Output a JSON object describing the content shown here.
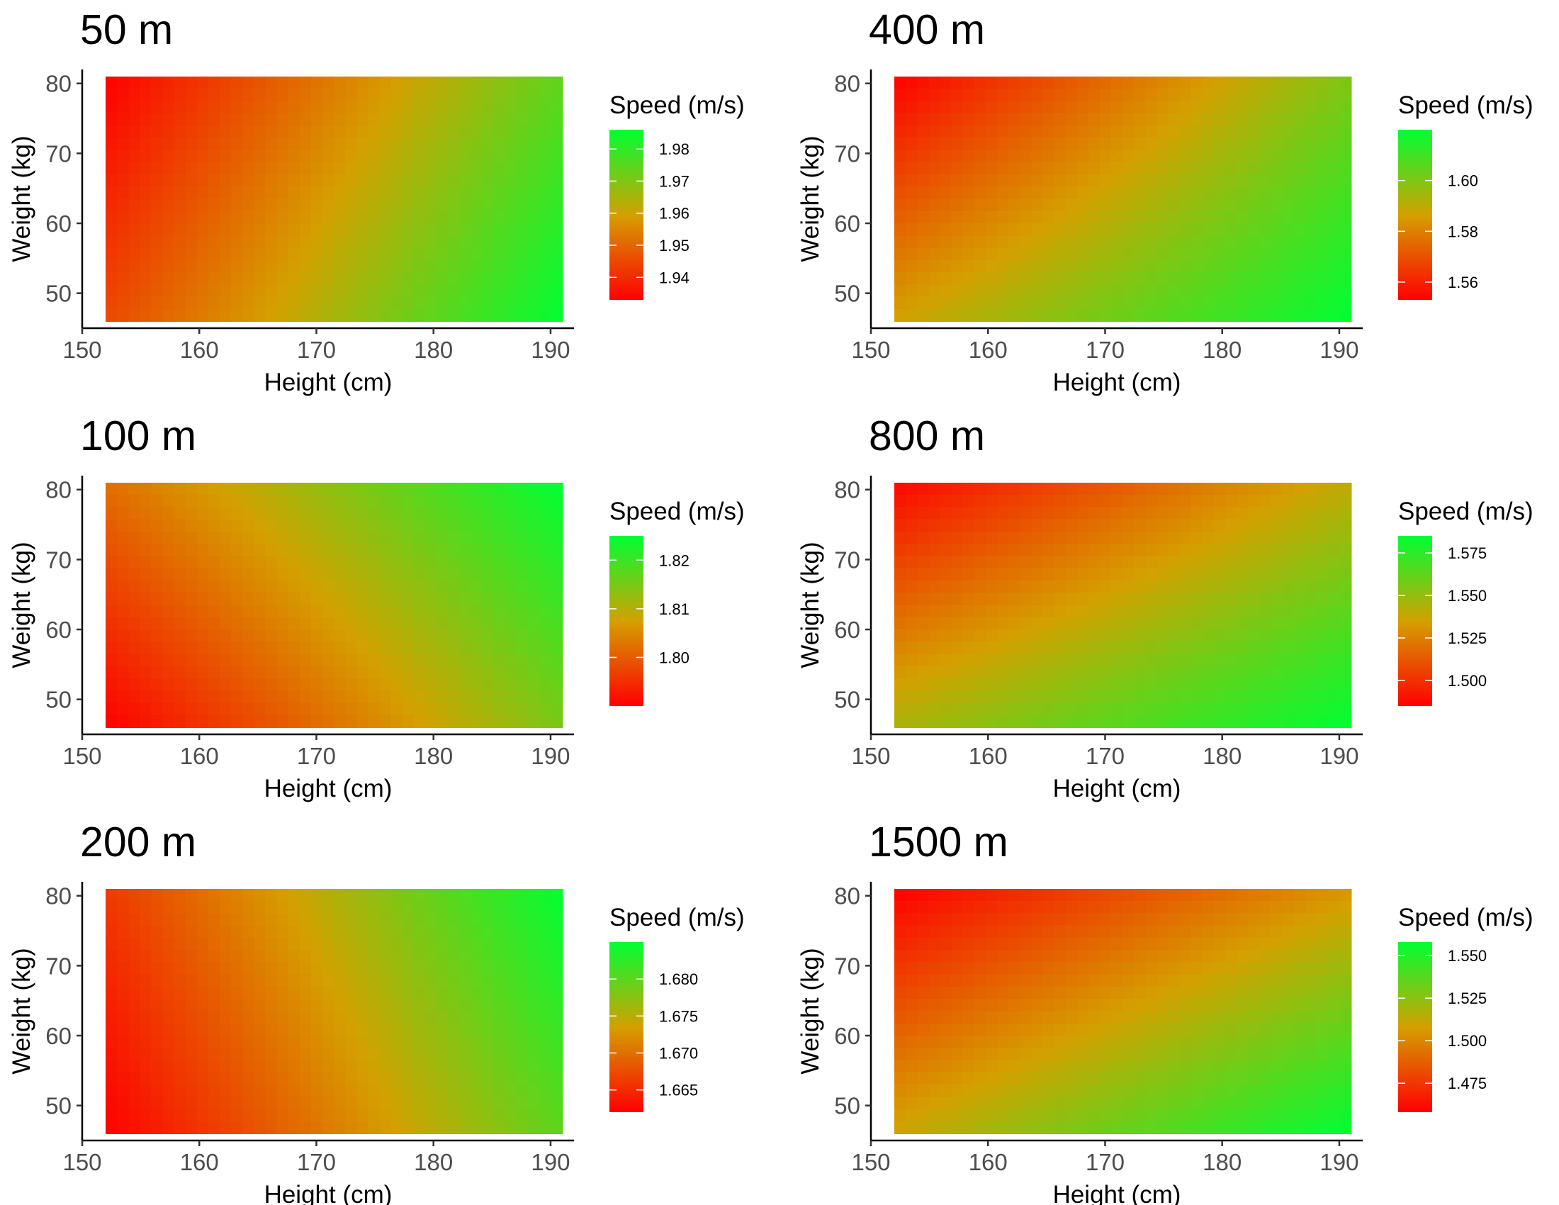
{
  "chart_data": [
    {
      "type": "heatmap",
      "title": "50 m",
      "xlabel": "Height (cm)",
      "ylabel": "Weight (kg)",
      "xlim": [
        150,
        192
      ],
      "ylim": [
        45,
        82
      ],
      "xticks": [
        "150",
        "160",
        "170",
        "180",
        "190"
      ],
      "yticks": [
        "50",
        "60",
        "70",
        "80"
      ],
      "x_range": [
        152,
        191
      ],
      "y_range": [
        46,
        81
      ],
      "corner_values": {
        "x152_y46": 1.945,
        "x191_y46": 1.986,
        "x152_y81": 1.933,
        "x191_y81": 1.974
      },
      "legend": {
        "title": "Speed (m/s)",
        "placement": "right",
        "colors": [
          "#ff0000",
          "#d4a000",
          "#00ff33"
        ],
        "range": [
          1.933,
          1.986
        ],
        "tick_values": [
          1.94,
          1.95,
          1.96,
          1.97,
          1.98
        ],
        "tick_labels": [
          "1.94",
          "1.95",
          "1.96",
          "1.97",
          "1.98"
        ]
      },
      "grid": false
    },
    {
      "type": "heatmap",
      "title": "400 m",
      "xlabel": "Height (cm)",
      "ylabel": "Weight (kg)",
      "xlim": [
        150,
        192
      ],
      "ylim": [
        45,
        82
      ],
      "xticks": [
        "150",
        "160",
        "170",
        "180",
        "190"
      ],
      "yticks": [
        "50",
        "60",
        "70",
        "80"
      ],
      "x_range": [
        152,
        191
      ],
      "y_range": [
        46,
        81
      ],
      "corner_values": {
        "x152_y46": 1.587,
        "x191_y46": 1.62,
        "x152_y81": 1.553,
        "x191_y81": 1.6
      },
      "legend": {
        "title": "Speed (m/s)",
        "placement": "right",
        "colors": [
          "#ff0000",
          "#d4a000",
          "#00ff33"
        ],
        "range": [
          1.553,
          1.62
        ],
        "tick_values": [
          1.56,
          1.58,
          1.6
        ],
        "tick_labels": [
          "1.56",
          "1.58",
          "1.60"
        ]
      },
      "grid": false
    },
    {
      "type": "heatmap",
      "title": "100 m",
      "xlabel": "Height (cm)",
      "ylabel": "Weight (kg)",
      "xlim": [
        150,
        192
      ],
      "ylim": [
        45,
        82
      ],
      "xticks": [
        "150",
        "160",
        "170",
        "180",
        "190"
      ],
      "yticks": [
        "50",
        "60",
        "70",
        "80"
      ],
      "x_range": [
        152,
        191
      ],
      "y_range": [
        46,
        81
      ],
      "corner_values": {
        "x152_y46": 1.79,
        "x191_y46": 1.815,
        "x152_y81": 1.802,
        "x191_y81": 1.825
      },
      "legend": {
        "title": "Speed (m/s)",
        "placement": "right",
        "colors": [
          "#ff0000",
          "#d4a000",
          "#00ff33"
        ],
        "range": [
          1.79,
          1.825
        ],
        "tick_values": [
          1.8,
          1.81,
          1.82
        ],
        "tick_labels": [
          "1.80",
          "1.81",
          "1.82"
        ]
      },
      "grid": false
    },
    {
      "type": "heatmap",
      "title": "800 m",
      "xlabel": "Height (cm)",
      "ylabel": "Weight (kg)",
      "xlim": [
        150,
        192
      ],
      "ylim": [
        45,
        82
      ],
      "xticks": [
        "150",
        "160",
        "170",
        "180",
        "190"
      ],
      "yticks": [
        "50",
        "60",
        "70",
        "80"
      ],
      "x_range": [
        152,
        191
      ],
      "y_range": [
        46,
        81
      ],
      "corner_values": {
        "x152_y46": 1.545,
        "x191_y46": 1.585,
        "x152_y81": 1.487,
        "x191_y81": 1.54
      },
      "legend": {
        "title": "Speed (m/s)",
        "placement": "right",
        "colors": [
          "#ff0000",
          "#d4a000",
          "#00ff33"
        ],
        "range": [
          1.485,
          1.585
        ],
        "tick_values": [
          1.5,
          1.525,
          1.55,
          1.575
        ],
        "tick_labels": [
          "1.500",
          "1.525",
          "1.550",
          "1.575"
        ]
      },
      "grid": false
    },
    {
      "type": "heatmap",
      "title": "200 m",
      "xlabel": "Height (cm)",
      "ylabel": "Weight (kg)",
      "xlim": [
        150,
        192
      ],
      "ylim": [
        45,
        82
      ],
      "xticks": [
        "150",
        "160",
        "170",
        "180",
        "190"
      ],
      "yticks": [
        "50",
        "60",
        "70",
        "80"
      ],
      "x_range": [
        152,
        191
      ],
      "y_range": [
        46,
        81
      ],
      "corner_values": {
        "x152_y46": 1.662,
        "x191_y46": 1.68,
        "x152_y81": 1.666,
        "x191_y81": 1.685
      },
      "legend": {
        "title": "Speed (m/s)",
        "placement": "right",
        "colors": [
          "#ff0000",
          "#d4a000",
          "#00ff33"
        ],
        "range": [
          1.662,
          1.685
        ],
        "tick_values": [
          1.665,
          1.67,
          1.675,
          1.68
        ],
        "tick_labels": [
          "1.665",
          "1.670",
          "1.675",
          "1.680"
        ]
      },
      "grid": false
    },
    {
      "type": "heatmap",
      "title": "1500 m",
      "xlabel": "Height (cm)",
      "ylabel": "Weight (kg)",
      "xlim": [
        150,
        192
      ],
      "ylim": [
        45,
        82
      ],
      "xticks": [
        "150",
        "160",
        "170",
        "180",
        "190"
      ],
      "yticks": [
        "50",
        "60",
        "70",
        "80"
      ],
      "x_range": [
        152,
        191
      ],
      "y_range": [
        46,
        81
      ],
      "corner_values": {
        "x152_y46": 1.51,
        "x191_y46": 1.558,
        "x152_y81": 1.458,
        "x191_y81": 1.505
      },
      "legend": {
        "title": "Speed (m/s)",
        "placement": "right",
        "colors": [
          "#ff0000",
          "#d4a000",
          "#00ff33"
        ],
        "range": [
          1.458,
          1.558
        ],
        "tick_values": [
          1.475,
          1.5,
          1.525,
          1.55
        ],
        "tick_labels": [
          "1.475",
          "1.500",
          "1.525",
          "1.550"
        ]
      },
      "grid": false
    }
  ]
}
